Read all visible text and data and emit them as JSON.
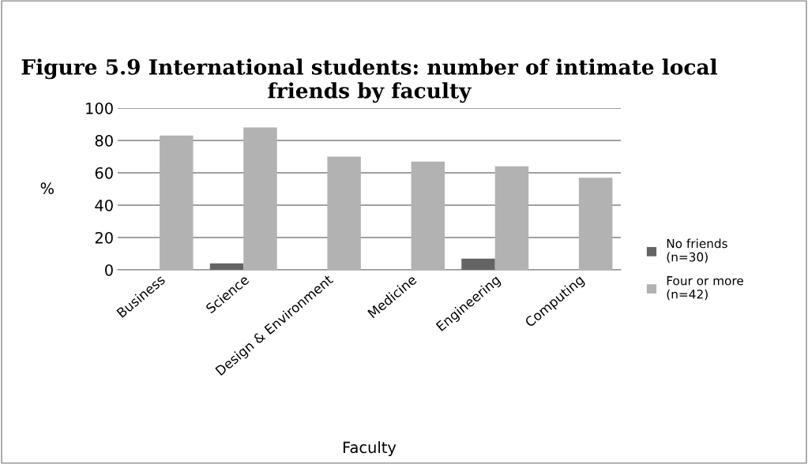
{
  "chart_data": {
    "type": "bar",
    "title": "Figure 5.9 International students: number of intimate local friends by faculty",
    "xlabel": "Faculty",
    "ylabel": "%",
    "categories": [
      "Business",
      "Science",
      "Design & Environment",
      "Medicine",
      "Engineering",
      "Computing"
    ],
    "series": [
      {
        "name": "No friends\n(n=30)",
        "color": "#646464",
        "values": [
          0,
          4,
          0,
          0,
          7,
          0
        ]
      },
      {
        "name": "Four or more\n(n=42)",
        "color": "#b2b2b2",
        "values": [
          83,
          88,
          70,
          67,
          64,
          57
        ]
      }
    ],
    "ylim": [
      0,
      100
    ],
    "yticks": [
      0,
      20,
      40,
      60,
      80,
      100
    ],
    "grid": "y",
    "legend": "right"
  }
}
